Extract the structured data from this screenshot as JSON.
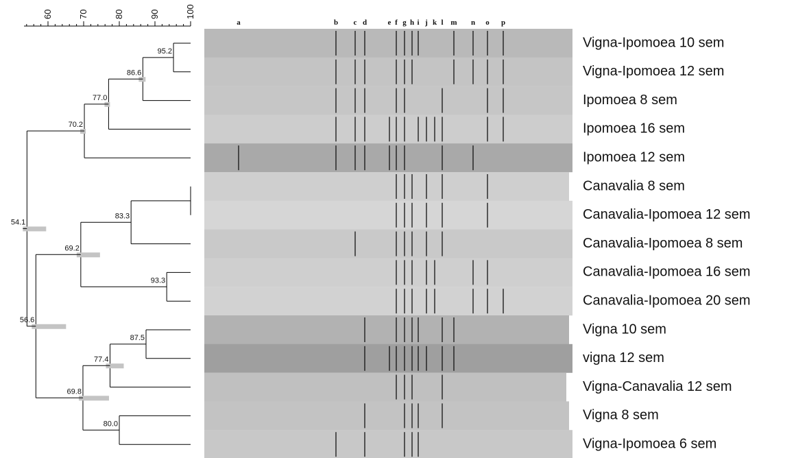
{
  "scale": {
    "ticks": [
      60,
      70,
      80,
      90,
      100
    ]
  },
  "nodes": [
    54.1,
    70.2,
    {
      "value": 77,
      "label": "77.0"
    },
    86.6,
    95.2,
    56.6,
    69.2,
    83.3,
    93.3,
    69.8,
    77.4,
    87.5,
    {
      "value": 80,
      "label": "80.0"
    }
  ],
  "bands": [
    "a",
    "b",
    "c",
    "d",
    "e",
    "f",
    "g",
    "h",
    "i",
    "j",
    "k",
    "l",
    "m",
    "n",
    "o",
    "p"
  ],
  "lanes": [
    "Vigna-Ipomoea 10 sem",
    "Vigna-Ipomoea 12 sem",
    "Ipomoea 8 sem",
    "Ipomoea 16 sem",
    "Ipomoea 12 sem",
    "Canavalia 8 sem",
    "Canavalia-Ipomoea 12 sem",
    "Canavalia-Ipomoea 8 sem",
    "Canavalia-Ipomoea 16 sem",
    "Canavalia-Ipomoea 20 sem",
    "Vigna 10 sem",
    "vigna 12 sem",
    "Vigna-Canavalia 12 sem",
    "Vigna 8 sem",
    "Vigna-Ipomoea 6 sem"
  ]
}
